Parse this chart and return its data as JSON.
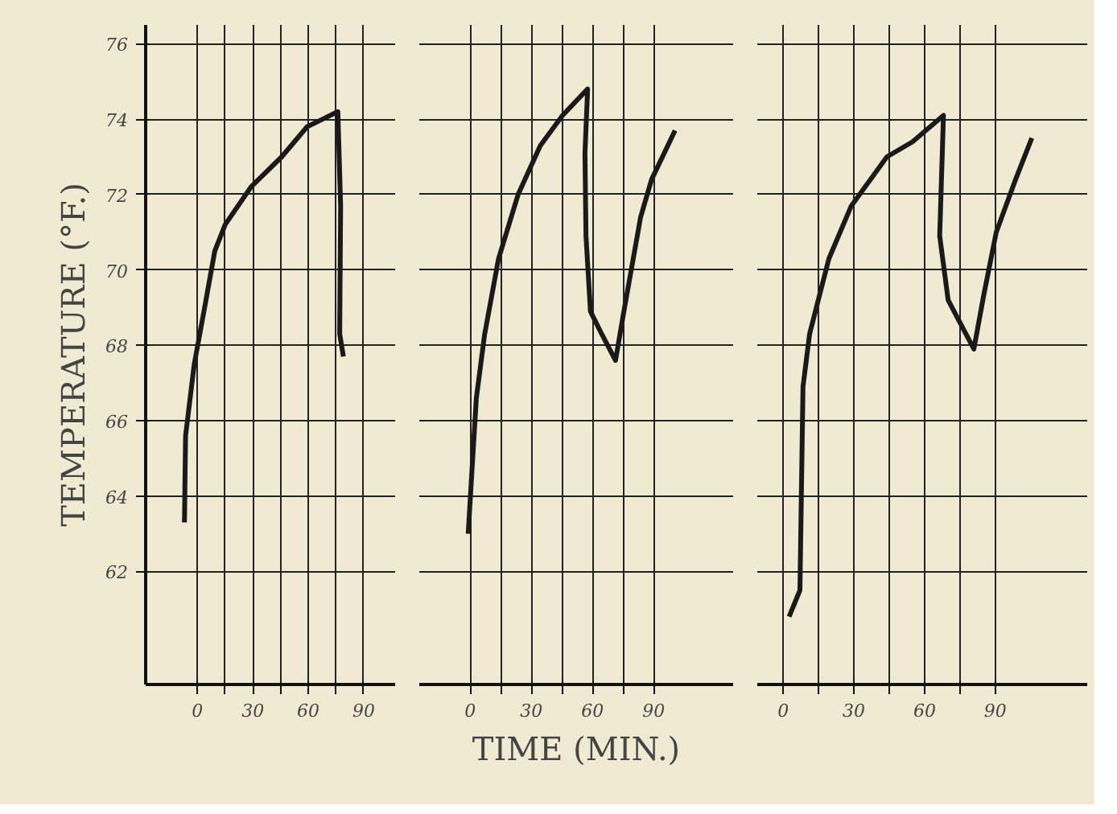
{
  "chart_data": [
    {
      "type": "line",
      "ylabel": "TEMPERATURE (°F.)",
      "xlim": [
        -28,
        107
      ],
      "ylim": [
        59,
        76.5
      ],
      "xticks": [
        0,
        {
          "value": 15,
          "label": null
        },
        30,
        {
          "value": 45,
          "label": null
        },
        60,
        {
          "value": 75,
          "label": null
        },
        90
      ],
      "yticks": [
        62,
        64,
        66,
        68,
        70,
        72,
        74,
        76
      ],
      "grid": true,
      "series": [
        {
          "color": "#1a1a1a",
          "x": [
            -7,
            -6.4,
            -1.7,
            3.9,
            9.4,
            15,
            29,
            45.6,
            59.4,
            67.8,
            76,
            77.5,
            77,
            79
          ],
          "values": [
            63.3,
            65.6,
            67.5,
            69.0,
            70.5,
            71.2,
            72.2,
            73.0,
            73.8,
            74.0,
            74.2,
            71.7,
            68.3,
            67.7
          ]
        }
      ]
    },
    {
      "type": "line",
      "xlabel": "TIME (MIN.)",
      "xlim": [
        -25,
        129
      ],
      "ylim": [
        59,
        76.5
      ],
      "tick_labels": "x",
      "xticks": [
        0,
        {
          "value": 15,
          "label": null
        },
        30,
        {
          "value": 45,
          "label": null
        },
        60,
        {
          "value": 75,
          "label": null
        },
        90
      ],
      "yticks": [
        62,
        64,
        66,
        68,
        70,
        72,
        74,
        76
      ],
      "grid": true,
      "series": [
        {
          "color": "#1a1a1a",
          "x": [
            -1,
            1.1,
            3,
            7.1,
            13.9,
            23.5,
            34.4,
            45.3,
            57.6,
            56.3,
            56.8,
            59,
            64.5,
            71.3,
            75.4,
            83.6,
            89,
            100.5
          ],
          "values": [
            63.0,
            64.9,
            66.6,
            68.3,
            70.3,
            72.0,
            73.3,
            74.1,
            74.8,
            73.1,
            70.9,
            68.9,
            68.3,
            67.6,
            68.9,
            71.4,
            72.4,
            73.7
          ]
        }
      ]
    },
    {
      "type": "line",
      "xlim": [
        -11,
        129
      ],
      "ylim": [
        59,
        76.5
      ],
      "tick_labels": "x",
      "xticks": [
        0,
        {
          "value": 15,
          "label": null
        },
        30,
        {
          "value": 45,
          "label": null
        },
        60,
        {
          "value": 75,
          "label": null
        },
        90
      ],
      "yticks": [
        62,
        64,
        66,
        68,
        70,
        72,
        74,
        76
      ],
      "grid": true,
      "series": [
        {
          "color": "#1a1a1a",
          "x": [
            2.5,
            7.1,
            8.4,
            11.2,
            19.4,
            28.9,
            44,
            54.9,
            68,
            66.4,
            70,
            80.9,
            85,
            90.4,
            98.6,
            105.5
          ],
          "values": [
            60.8,
            61.5,
            66.9,
            68.3,
            70.3,
            71.7,
            73.0,
            73.4,
            74.1,
            70.9,
            69.2,
            67.9,
            69.3,
            71.0,
            72.4,
            73.5
          ]
        }
      ]
    }
  ]
}
